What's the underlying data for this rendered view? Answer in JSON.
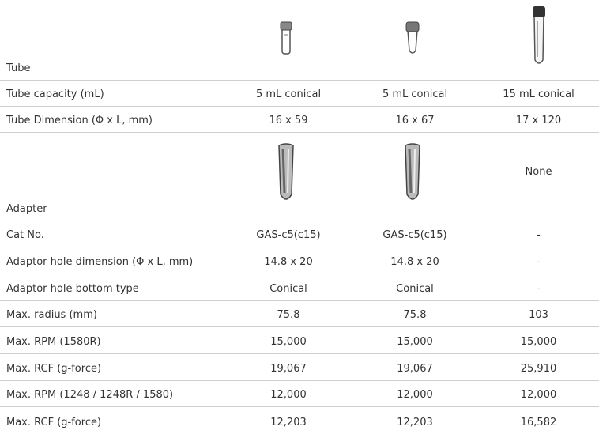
{
  "table": {
    "rows": [
      {
        "label": "Tube"
      },
      {
        "label": "Tube capacity (mL)",
        "cells": [
          "5 mL conical",
          "5 mL conical",
          "15 mL conical"
        ]
      },
      {
        "label": "Tube Dimension (Φ x L, mm)",
        "cells": [
          "16 x 59",
          "16 x 67",
          "17 x 120"
        ]
      },
      {
        "label": "Adapter",
        "note": "None"
      },
      {
        "label": "Cat No.",
        "cells": [
          "GAS-c5(c15)",
          "GAS-c5(c15)",
          "-"
        ]
      },
      {
        "label": "Adaptor hole dimension (Φ x L, mm)",
        "cells": [
          "14.8 x 20",
          "14.8 x 20",
          "-"
        ]
      },
      {
        "label": "Adaptor hole bottom type",
        "cells": [
          "Conical",
          "Conical",
          "-"
        ]
      },
      {
        "label": "Max. radius (mm)",
        "cells": [
          "75.8",
          "75.8",
          "103"
        ]
      },
      {
        "label": "Max. RPM (1580R)",
        "cells": [
          "15,000",
          "15,000",
          "15,000"
        ]
      },
      {
        "label": "Max. RCF (g-force)",
        "cells": [
          "19,067",
          "19,067",
          "25,910"
        ]
      },
      {
        "label": "Max. RPM (1248 / 1248R / 1580)",
        "cells": [
          "12,000",
          "12,000",
          "12,000"
        ]
      },
      {
        "label": "Max. RCF (g-force)",
        "cells": [
          "12,203",
          "12,203",
          "16,582"
        ]
      }
    ]
  }
}
